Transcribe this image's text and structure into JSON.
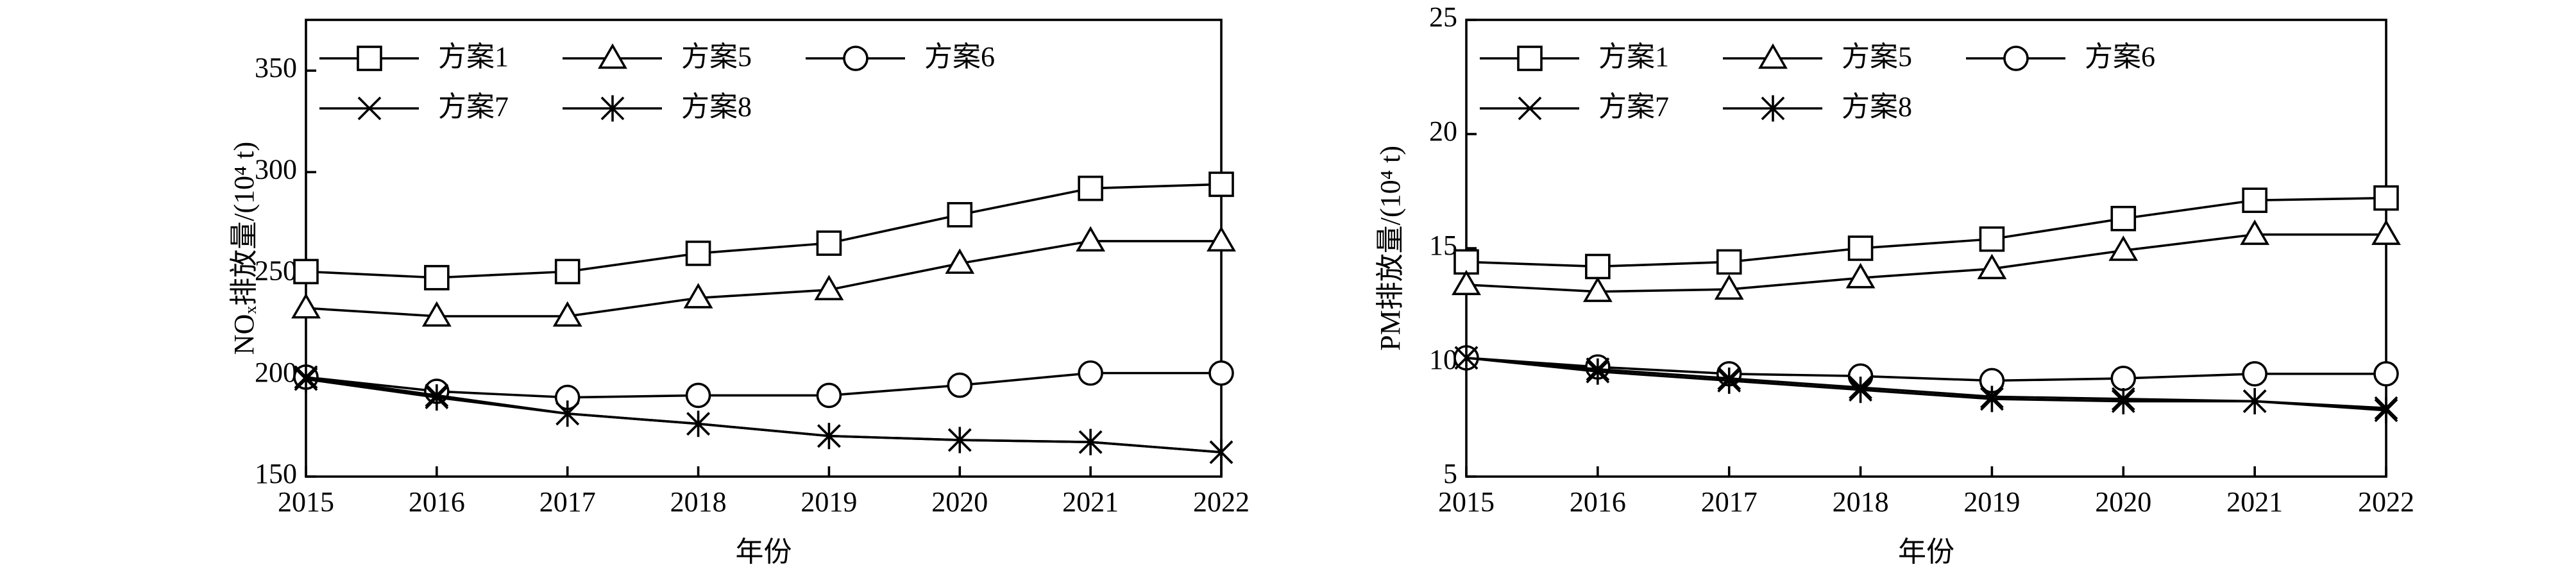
{
  "chart_data": [
    {
      "type": "line",
      "ylabel": "NOₓ排放量/(10⁴ t)",
      "xlabel": "年份",
      "categories": [
        "2015",
        "2016",
        "2017",
        "2018",
        "2019",
        "2020",
        "2021",
        "2022"
      ],
      "ylim": [
        150,
        375
      ],
      "yticks": [
        150,
        200,
        250,
        300,
        350
      ],
      "series": [
        {
          "name": "方案1",
          "color": "#000000",
          "marker": "square",
          "values": [
            251,
            248,
            251,
            260,
            265,
            279,
            292,
            294
          ]
        },
        {
          "name": "方案5",
          "color": "#000000",
          "marker": "triangle",
          "values": [
            233,
            229,
            229,
            238,
            242,
            255,
            266,
            266
          ]
        },
        {
          "name": "方案6",
          "color": "#000000",
          "marker": "circle",
          "values": [
            199,
            192,
            189,
            190,
            190,
            195,
            201,
            201
          ]
        },
        {
          "name": "方案7",
          "color": "#000000",
          "marker": "x",
          "values": [
            199,
            190,
            181,
            176,
            170,
            168,
            167,
            162
          ]
        },
        {
          "name": "方案8",
          "color": "#000000",
          "marker": "asterisk",
          "values": [
            198,
            189,
            181,
            176,
            170,
            168,
            167,
            162
          ]
        }
      ]
    },
    {
      "type": "line",
      "ylabel": "PM排放量/(10⁴ t)",
      "xlabel": "年份",
      "categories": [
        "2015",
        "2016",
        "2017",
        "2018",
        "2019",
        "2020",
        "2021",
        "2022"
      ],
      "ylim": [
        5,
        25
      ],
      "yticks": [
        5,
        10,
        15,
        20,
        25
      ],
      "series": [
        {
          "name": "方案1",
          "color": "#000000",
          "marker": "square",
          "values": [
            14.4,
            14.2,
            14.4,
            15.0,
            15.4,
            16.3,
            17.1,
            17.2
          ]
        },
        {
          "name": "方案5",
          "color": "#000000",
          "marker": "triangle",
          "values": [
            13.4,
            13.1,
            13.2,
            13.7,
            14.1,
            14.9,
            15.6,
            15.6
          ]
        },
        {
          "name": "方案6",
          "color": "#000000",
          "marker": "circle",
          "values": [
            10.2,
            9.8,
            9.5,
            9.4,
            9.2,
            9.3,
            9.5,
            9.5
          ]
        },
        {
          "name": "方案7",
          "color": "#000000",
          "marker": "x",
          "values": [
            10.2,
            9.7,
            9.3,
            8.9,
            8.5,
            8.4,
            8.3,
            8.0
          ]
        },
        {
          "name": "方案8",
          "color": "#000000",
          "marker": "asterisk",
          "values": [
            10.2,
            9.6,
            9.2,
            8.8,
            8.4,
            8.3,
            8.3,
            7.9
          ]
        }
      ]
    }
  ]
}
